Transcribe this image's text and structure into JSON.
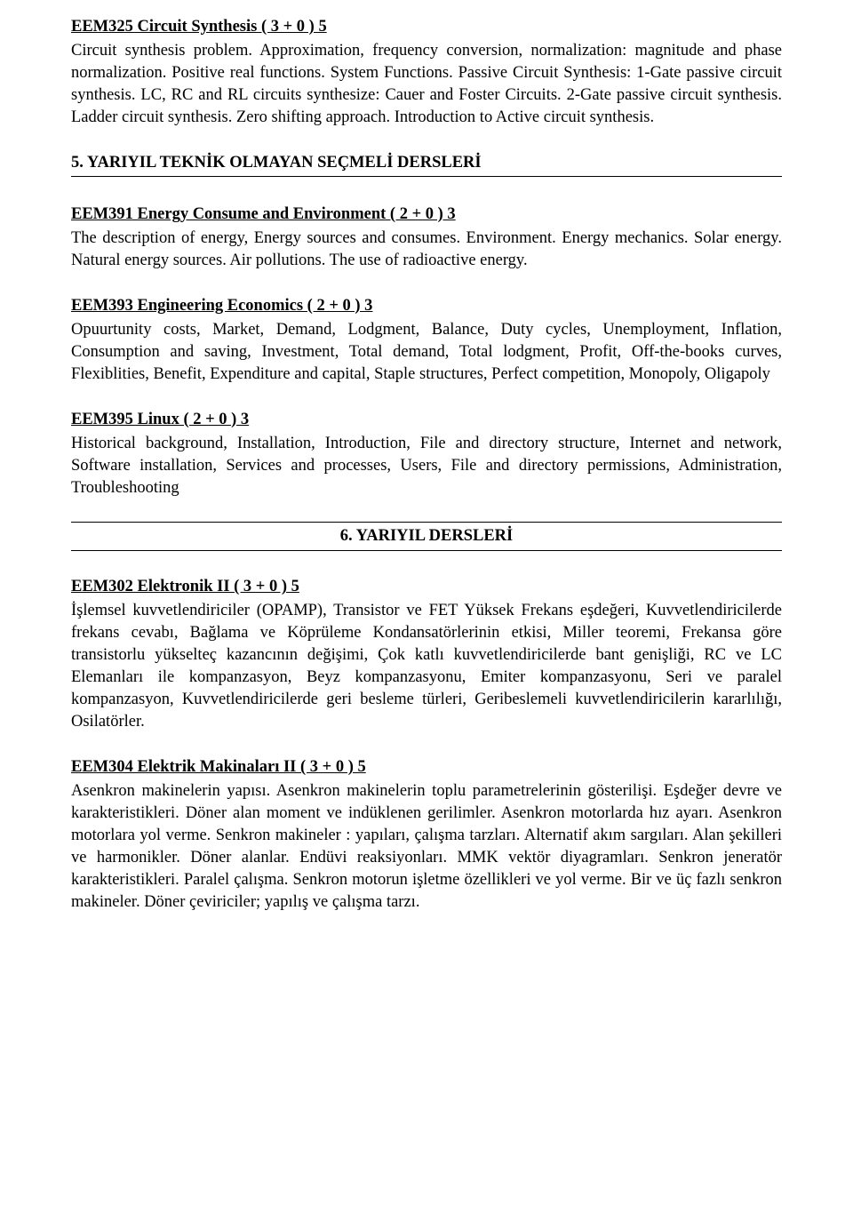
{
  "courses": [
    {
      "title": "EEM325 Circuit Synthesis ( 3 + 0 ) 5",
      "body": "Circuit synthesis problem. Approximation, frequency conversion, normalization: magnitude and phase normalization. Positive real functions. System Functions. Passive Circuit Synthesis: 1-Gate passive circuit synthesis. LC, RC and RL circuits synthesize: Cauer and Foster Circuits. 2-Gate passive circuit synthesis. Ladder circuit synthesis. Zero shifting approach. Introduction to Active circuit synthesis."
    }
  ],
  "section1": {
    "heading": "5. YARIYIL TEKNİK OLMAYAN SEÇMELİ DERSLERİ",
    "courses": [
      {
        "title": "EEM391 Energy Consume and Environment  ( 2 + 0 ) 3",
        "body": "The description of energy, Energy sources and consumes. Environment. Energy mechanics. Solar energy. Natural energy sources. Air pollutions. The use of radioactive energy."
      },
      {
        "title": "EEM393 Engineering Economics ( 2 + 0 ) 3",
        "body": "Opuurtunity costs, Market, Demand, Lodgment, Balance, Duty cycles, Unemployment, Inflation, Consumption and saving, Investment, Total demand, Total lodgment, Profit, Off-the-books curves, Flexiblities, Benefit, Expenditure and capital, Staple structures, Perfect competition, Monopoly, Oligapoly"
      },
      {
        "title": "EEM395 Linux ( 2 + 0 ) 3",
        "body": "Historical background, Installation, Introduction, File and directory structure, Internet and network, Software installation, Services and processes, Users, File and directory permissions, Administration, Troubleshooting"
      }
    ]
  },
  "section2": {
    "heading": "6. YARIYIL DERSLERİ",
    "courses": [
      {
        "title": "EEM302 Elektronik II ( 3 + 0 ) 5",
        "body": "İşlemsel kuvvetlendiriciler (OPAMP), Transistor ve FET Yüksek Frekans eşdeğeri, Kuvvetlendiricilerde frekans cevabı, Bağlama ve Köprüleme Kondansatörlerinin etkisi, Miller teoremi, Frekansa göre transistorlu yükselteç kazancının değişimi, Çok katlı kuvvetlendiricilerde bant genişliği, RC ve LC Elemanları ile kompanzasyon, Beyz kompanzasyonu, Emiter kompanzasyonu, Seri ve paralel kompanzasyon, Kuvvetlendiricilerde geri besleme türleri, Geribeslemeli kuvvetlendiricilerin kararlılığı, Osilatörler."
      },
      {
        "title": "EEM304 Elektrik Makinaları II ( 3 + 0 ) 5",
        "body": "Asenkron makinelerin yapısı. Asenkron makinelerin toplu parametrelerinin gösterilişi. Eşdeğer devre ve karakteristikleri. Döner alan moment ve indüklenen gerilimler. Asenkron motorlarda hız ayarı. Asenkron motorlara yol verme. Senkron makineler : yapıları, çalışma tarzları. Alternatif akım sargıları. Alan şekilleri ve harmonikler. Döner alanlar. Endüvi reaksiyonları. MMK vektör diyagramları. Senkron jeneratör karakteristikleri. Paralel çalışma. Senkron motorun işletme özellikleri ve yol verme. Bir ve üç fazlı senkron makineler. Döner çeviriciler; yapılış ve çalışma tarzı."
      }
    ]
  }
}
